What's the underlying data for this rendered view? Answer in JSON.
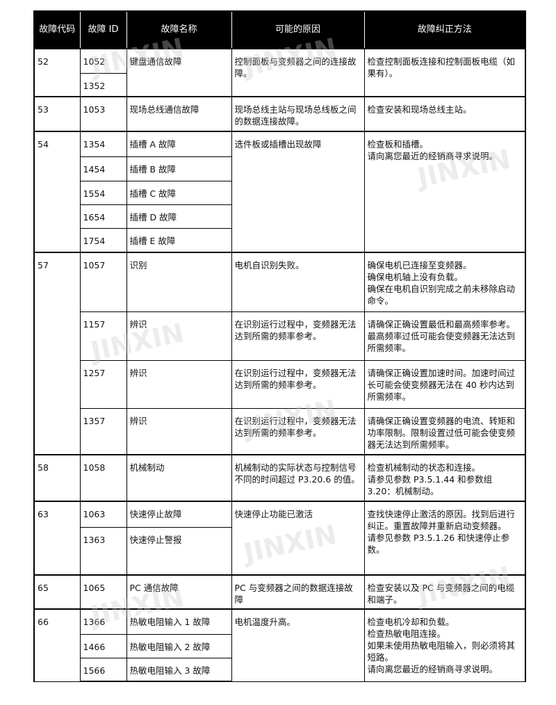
{
  "header": {
    "code": "故障代码",
    "id": "故障 ID",
    "name": "故障名称",
    "cause": "可能的原因",
    "fix": "故障纠正方法"
  },
  "groups": [
    {
      "code": "52",
      "ids": [
        "1052",
        "1352"
      ],
      "names": [
        "键盘通信故障"
      ],
      "causes": [
        "控制面板与变频器之间的连接故障。"
      ],
      "fixes": [
        "检查控制面板连接和控制面板电缆（如果有）。"
      ]
    },
    {
      "code": "53",
      "ids": [
        "1053"
      ],
      "names": [
        "现场总线通信故障"
      ],
      "causes": [
        "现场总线主站与现场总线板之间的数据连接故障。"
      ],
      "fixes": [
        "检查安装和现场总线主站。"
      ]
    },
    {
      "code": "54",
      "ids": [
        "1354",
        "1454",
        "1554",
        "1654",
        "1754"
      ],
      "names": [
        "插槽 A 故障",
        "插槽 B 故障",
        "插槽 C 故障",
        "插槽 D 故障",
        "插槽 E 故障"
      ],
      "causes": [
        "选件板或插槽出现故障"
      ],
      "fixes": [
        "检查板和插槽。\n请向离您最近的经销商寻求说明。"
      ]
    },
    {
      "code": "57",
      "ids": [
        "1057",
        "1157",
        "1257",
        "1357"
      ],
      "names": [
        "识别",
        "辨识",
        "辨识",
        "辨识"
      ],
      "causes": [
        "电机自识别失败。",
        "在识别运行过程中，变频器无法达到所需的频率参考。",
        "在识别运行过程中，变频器无法达到所需的频率参考。",
        "在识别运行过程中，变频器无法达到所需的频率参考。"
      ],
      "fixes": [
        "确保电机已连接至变频器。\n确保电机轴上没有负载。\n确保在电机自识别完成之前未移除启动命令。",
        "请确保正确设置最低和最高频率参考。最高频率过低可能会使变频器无法达到所需频率。",
        "请确保正确设置加速时间。加速时间过长可能会使变频器无法在 40 秒内达到所需频率。",
        "请确保正确设置变频器的电流、转矩和功率限制。限制设置过低可能会使变频器无法达到所需频率。"
      ]
    },
    {
      "code": "58",
      "ids": [
        "1058"
      ],
      "names": [
        "机械制动"
      ],
      "causes": [
        "机械制动的实际状态与控制信号不同的时间超过 P3.20.6 的值。"
      ],
      "fixes": [
        "检查机械制动的状态和连接。\n请参见参数 P3.5.1.44 和参数组 3.20：机械制动。"
      ]
    },
    {
      "code": "63",
      "ids": [
        "1063",
        "1363"
      ],
      "names": [
        "快速停止故障",
        "快速停止警报"
      ],
      "causes": [
        "快速停止功能已激活"
      ],
      "fixes": [
        "查找快速停止激活的原因。找到后进行纠正。重置故障并重新启动变频器。\n请参见参数 P3.5.1.26 和快速停止参数。"
      ]
    },
    {
      "code": "65",
      "ids": [
        "1065"
      ],
      "names": [
        "PC 通信故障"
      ],
      "causes": [
        "PC 与变频器之间的数据连接故障"
      ],
      "fixes": [
        "检查安装以及 PC 与变频器之间的电缆和端子。"
      ]
    },
    {
      "code": "66",
      "ids": [
        "1366",
        "1466",
        "1566"
      ],
      "names": [
        "热敏电阻输入 1 故障",
        "热敏电阻输入 2 故障",
        "热敏电阻输入 3 故障"
      ],
      "causes": [
        "电机温度升高。"
      ],
      "fixes": [
        "检查电机冷却和负载。\n检查热敏电阻连接。\n如果未使用热敏电阻输入，则必须将其短路。\n请向离您最近的经销商寻求说明。"
      ]
    }
  ],
  "watermark": "JINXIN 津信 值得信赖的变频器专家"
}
